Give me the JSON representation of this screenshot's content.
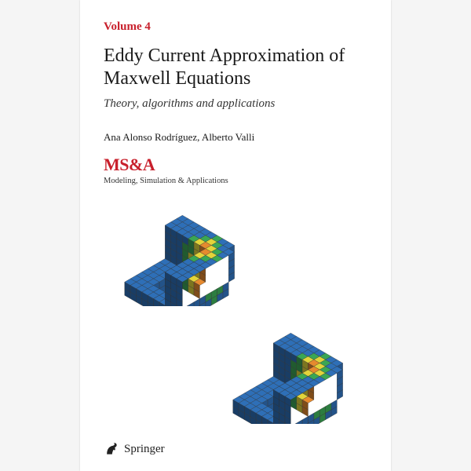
{
  "volume": {
    "label": "Volume 4",
    "color": "#c8202c"
  },
  "title": "Eddy Current Approximation of Maxwell Equations",
  "subtitle": "Theory, algorithms and applications",
  "authors": "Ana Alonso Rodríguez, Alberto Valli",
  "series": {
    "brand": "MS&A",
    "brand_color": "#c8202c",
    "tagline": "Modeling, Simulation & Applications"
  },
  "publisher": {
    "name": "Springer",
    "logo_color": "#222222"
  },
  "figure": {
    "description": "Two isometric voxel/edge-element visualizations of a 3D domain with colored field intensity",
    "palette": {
      "low": "#2e6fb7",
      "mid_low": "#3aa655",
      "mid": "#e2d43a",
      "mid_high": "#e68a2e",
      "high": "#d03a2a",
      "outline": "#303030"
    },
    "iso_angle_deg": 30
  },
  "background_color": "#ffffff"
}
